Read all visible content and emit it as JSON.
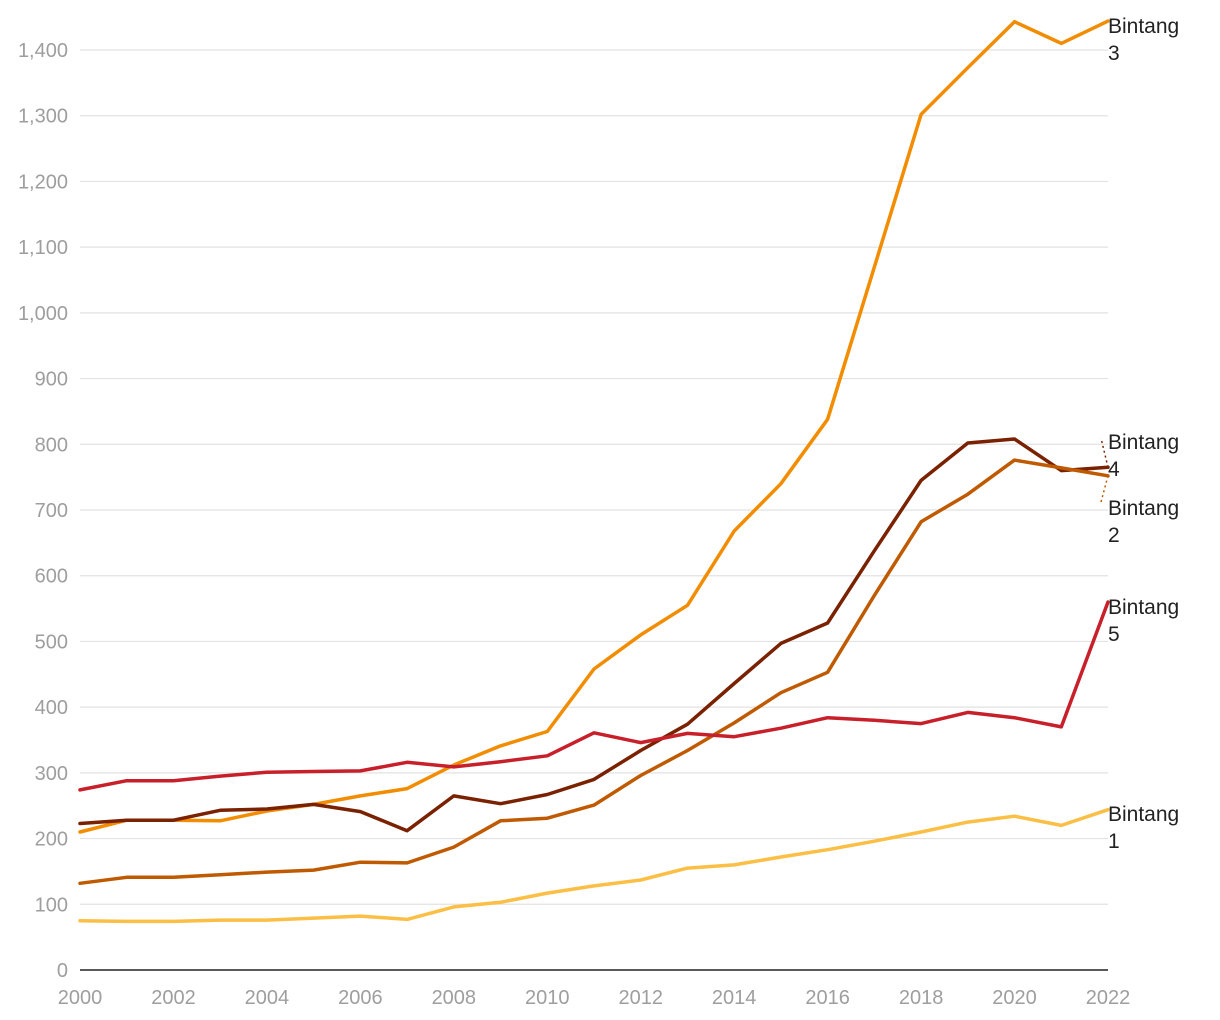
{
  "chart_data": {
    "type": "line",
    "title": "",
    "xlabel": "",
    "ylabel": "",
    "x": [
      2000,
      2001,
      2002,
      2003,
      2004,
      2005,
      2006,
      2007,
      2008,
      2009,
      2010,
      2011,
      2012,
      2013,
      2014,
      2015,
      2016,
      2017,
      2018,
      2019,
      2020,
      2021,
      2022
    ],
    "xticks": [
      "2000",
      "2002",
      "2004",
      "2006",
      "2008",
      "2010",
      "2012",
      "2014",
      "2016",
      "2018",
      "2020",
      "2022"
    ],
    "xlim": [
      2000,
      2022
    ],
    "ylim": [
      0,
      1450
    ],
    "yticks": [
      "0",
      "100",
      "200",
      "300",
      "400",
      "500",
      "600",
      "700",
      "800",
      "900",
      "1,000",
      "1,100",
      "1,200",
      "1,300",
      "1,400"
    ],
    "grid": true,
    "legend": "direct labels at line ends (right)",
    "series": [
      {
        "key": "b3",
        "label_line1": "Bintang",
        "label_line2": "3",
        "color": "#f28c00",
        "values": [
          210,
          228,
          228,
          227,
          242,
          252,
          265,
          276,
          312,
          341,
          363,
          458,
          510,
          555,
          668,
          740,
          838,
          1070,
          1302,
          1373,
          1443,
          1410,
          1444
        ]
      },
      {
        "key": "b4",
        "label_line1": "Bintang",
        "label_line2": "4",
        "color": "#7a2100",
        "values": [
          223,
          228,
          228,
          243,
          245,
          252,
          241,
          212,
          265,
          253,
          267,
          290,
          334,
          374,
          436,
          497,
          528,
          638,
          745,
          802,
          808,
          760,
          765
        ]
      },
      {
        "key": "b2",
        "label_line1": "Bintang",
        "label_line2": "2",
        "color": "#c05a00",
        "values": [
          132,
          141,
          141,
          145,
          149,
          152,
          164,
          163,
          187,
          227,
          231,
          251,
          296,
          334,
          376,
          422,
          453,
          570,
          682,
          724,
          776,
          764,
          752
        ]
      },
      {
        "key": "b5",
        "label_line1": "Bintang",
        "label_line2": "5",
        "color": "#c8202a",
        "values": [
          274,
          288,
          288,
          295,
          301,
          302,
          303,
          316,
          309,
          317,
          326,
          361,
          346,
          360,
          355,
          368,
          384,
          380,
          375,
          392,
          384,
          370,
          560
        ]
      },
      {
        "key": "b1",
        "label_line1": "Bintang",
        "label_line2": "1",
        "color": "#fbbf45",
        "values": [
          75,
          74,
          74,
          76,
          76,
          79,
          82,
          77,
          96,
          103,
          117,
          128,
          137,
          155,
          160,
          172,
          183,
          196,
          210,
          225,
          234,
          220,
          244
        ]
      }
    ]
  }
}
